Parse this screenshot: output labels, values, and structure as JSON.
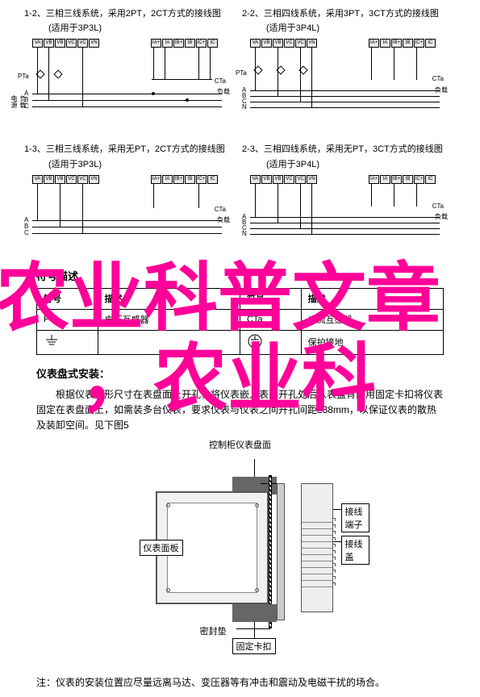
{
  "diagrams": [
    {
      "id": "1-2",
      "title": "1-2、三相三线系统，采用2PT，2CT方式的接线图",
      "subtitle": "(适用于3P3L)",
      "left_terminals": [
        "VA",
        "VB",
        "VB",
        "VC",
        "VC",
        "VN"
      ],
      "right_terminals": [
        "IA+",
        "IA",
        "IB+",
        "IB",
        "IC+",
        "IC"
      ],
      "rail_labels": [
        "A",
        "B",
        "C"
      ],
      "side_labels": {
        "pt": "PTa",
        "ct": "CTa",
        "load": "负载",
        "source": "电源"
      }
    },
    {
      "id": "2-2",
      "title": "2-2、三相四线系统，采用3PT，3CT方式的接线图",
      "subtitle": "(适用于3P4L)",
      "left_terminals": [
        "VA",
        "VB",
        "VB",
        "VC",
        "VC",
        "VN"
      ],
      "right_terminals": [
        "IA+",
        "IA",
        "IB+",
        "IB",
        "IC+",
        "IC"
      ],
      "rail_labels": [
        "A",
        "B",
        "C",
        "N"
      ],
      "side_labels": {
        "pt": "PTa",
        "ct": "CTa",
        "load": "负载",
        "source": "电源"
      }
    },
    {
      "id": "1-3",
      "title": "1-3、三相三线系统，采用无PT，2CT方式的接线图",
      "subtitle": "(适用于3P3L)",
      "left_terminals": [
        "VA",
        "VB",
        "VB",
        "VC",
        "VC",
        "VN"
      ],
      "right_terminals": [
        "IA+",
        "IA",
        "IB+",
        "IB",
        "IC+",
        "IC"
      ],
      "rail_labels": [
        "A",
        "B",
        "C"
      ],
      "side_labels": {
        "ct": "CTa",
        "load": "负载",
        "source": "电源"
      }
    },
    {
      "id": "2-3",
      "title": "2-3、三相四线系统，采用无PT，3CT方式的接线图",
      "subtitle": "(适用于3P4L)",
      "left_terminals": [
        "VA",
        "VB",
        "VB",
        "VC",
        "VC",
        "VN"
      ],
      "right_terminals": [
        "IA+",
        "IA",
        "IB+",
        "IB",
        "IC+",
        "IC"
      ],
      "rail_labels": [
        "A",
        "B",
        "C",
        "N"
      ],
      "side_labels": {
        "ct": "CTa",
        "load": "负载",
        "source": "电源"
      }
    }
  ],
  "symbol_section": {
    "heading": "符号描述",
    "columns": [
      "符号",
      "描述",
      "符号",
      "描述"
    ],
    "rows": [
      [
        "PTa",
        "电压互感器",
        "CTa",
        "电流互感器"
      ],
      [
        "",
        "",
        "",
        "保护接地"
      ]
    ]
  },
  "install": {
    "heading": "仪表盘式安装：",
    "body": "根据仪表外形尺寸在表盘面上开孔，将仪表嵌入表面开孔处后从表盘背面用固定卡扣将仪表固定在表盘面上，如需装多台仪表，要求仪表与仪表之间开孔间距≥38mm，以保证仪表的散热及装卸空间。见下图5",
    "panel_label": "控制柜仪表盘面",
    "callouts": {
      "top_clip": "固定卡扣",
      "face": "仪表面板",
      "gasket": "密封垫",
      "bottom_clip": "固定卡扣",
      "terminal": "接线端子",
      "cover": "接线盖"
    }
  },
  "footnote": "注：仪表的安装位置应尽量远离马达、变压器等有冲击和震动及电磁干扰的场合。",
  "overlay": {
    "line1": "农业科普文章",
    "line2": "，农业科",
    "color": "#ff0099",
    "font_size_1": 92,
    "font_size_2": 92,
    "top_1": 324,
    "left_1": -6,
    "top_2": 424,
    "left_2": 98
  }
}
